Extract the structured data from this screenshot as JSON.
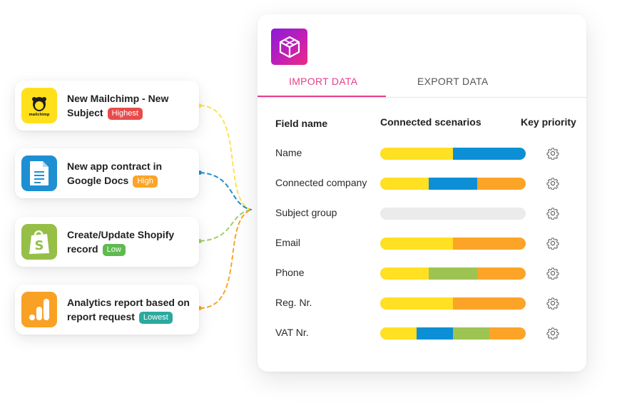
{
  "sources": [
    {
      "name": "mailchimp",
      "line1": "New Mailchimp - New",
      "line2": "Subject",
      "badge": "Highest",
      "badge_color": "#e84b4b",
      "icon_bg": "#ffe01b",
      "line_color": "#ffe34f"
    },
    {
      "name": "google-docs",
      "line1": "New app contract in",
      "line2": "Google Docs",
      "badge": "High",
      "badge_color": "#fba428",
      "icon_bg": "#1e8fd2",
      "line_color": "#1e8fd2"
    },
    {
      "name": "shopify",
      "line1": "Create/Update Shopify",
      "line2": "record",
      "badge": "Low",
      "badge_color": "#5fba4f",
      "icon_bg": "#95bf47",
      "line_color": "#9fd16a"
    },
    {
      "name": "analytics",
      "line1": "Analytics report based on",
      "line2": "report request",
      "badge": "Lowest",
      "badge_color": "#2ba99e",
      "icon_bg": "#f9a125",
      "line_color": "#fba428"
    }
  ],
  "tabs": {
    "import": "IMPORT DATA",
    "export": "EXPORT DATA"
  },
  "headers": {
    "field": "Field name",
    "scenarios": "Connected scenarios",
    "priority": "Key priority"
  },
  "colors": {
    "yellow": "#ffe022",
    "blue": "#0d8fd6",
    "orange": "#fba428",
    "green": "#9dc452",
    "empty": "#ebebeb",
    "accent": "#e83e8c"
  },
  "rows": [
    {
      "label": "Name",
      "segments": [
        [
          "yellow",
          1
        ],
        [
          "blue",
          1
        ]
      ]
    },
    {
      "label": "Connected company",
      "segments": [
        [
          "yellow",
          1
        ],
        [
          "blue",
          1
        ],
        [
          "orange",
          1
        ]
      ]
    },
    {
      "label": "Subject group",
      "segments": []
    },
    {
      "label": "Email",
      "segments": [
        [
          "yellow",
          1
        ],
        [
          "orange",
          1
        ]
      ]
    },
    {
      "label": "Phone",
      "segments": [
        [
          "yellow",
          1
        ],
        [
          "green",
          1
        ],
        [
          "orange",
          1
        ]
      ]
    },
    {
      "label": "Reg. Nr.",
      "segments": [
        [
          "yellow",
          1
        ],
        [
          "orange",
          1
        ]
      ]
    },
    {
      "label": "VAT Nr.",
      "segments": [
        [
          "yellow",
          1
        ],
        [
          "blue",
          1
        ],
        [
          "green",
          1
        ],
        [
          "orange",
          1
        ]
      ]
    }
  ]
}
